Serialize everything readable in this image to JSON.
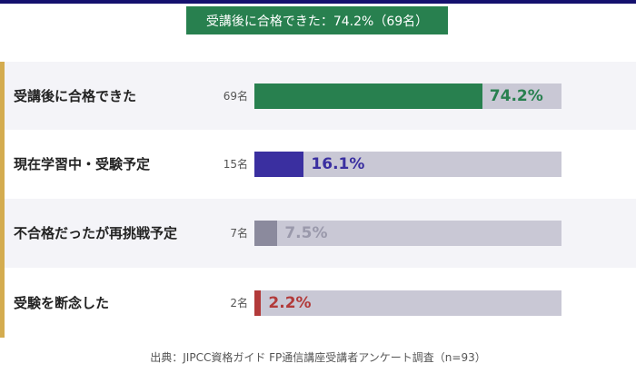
{
  "banner": "受講後に合格できた：74.2%（69名）",
  "chart_data": {
    "type": "bar",
    "orientation": "horizontal",
    "categories": [
      "受講後に合格できた",
      "現在学習中・受験予定",
      "不合格だったが再挑戦予定",
      "受験を断念した"
    ],
    "counts": [
      "69名",
      "15名",
      "7名",
      "2名"
    ],
    "values": [
      74.2,
      16.1,
      7.5,
      2.2
    ],
    "labels": [
      "74.2%",
      "16.1%",
      "7.5%",
      "2.2%"
    ],
    "colors": [
      "#28804f",
      "#3a2fa0",
      "#8b8a9d",
      "#b23a3a"
    ],
    "label_colors": [
      "#28804f",
      "#3a2fa0",
      "#9a99ab",
      "#b23a3a"
    ],
    "row_bg": [
      "#f4f4f8",
      "#ffffff",
      "#f4f4f8",
      "#ffffff"
    ],
    "xlim": [
      0,
      100
    ]
  },
  "source": "出典：JIPCC資格ガイド FP通信講座受講者アンケート調査（n=93）"
}
